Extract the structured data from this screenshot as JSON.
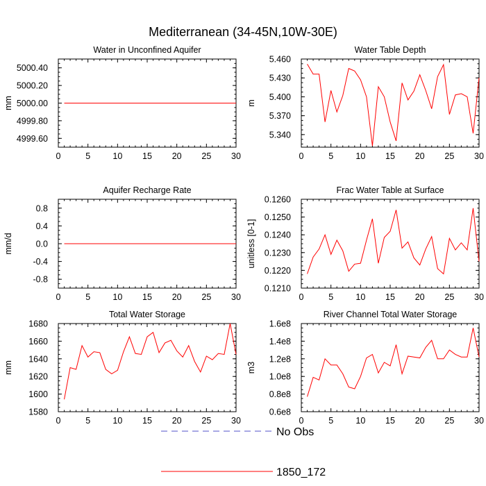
{
  "title": "Mediterranean (34-45N,10W-30E)",
  "series_color": "#ff0000",
  "obs_color": "#5050c8",
  "legend": {
    "obs_label": "No Obs",
    "model_label": "1850_172"
  },
  "chart_data": [
    {
      "type": "line",
      "title": "Water in Unconfined Aquifer",
      "ylabel": "mm",
      "xlim": [
        0,
        30
      ],
      "xticks": [
        0,
        5,
        10,
        15,
        20,
        25,
        30
      ],
      "ylim": [
        4999.5,
        5000.5
      ],
      "yticks": [
        4999.6,
        4999.8,
        5000.0,
        5000.2,
        5000.4
      ],
      "ytick_labels": [
        "4999.60",
        "4999.80",
        "5000.00",
        "5000.20",
        "5000.40"
      ],
      "x": [
        1,
        2,
        3,
        4,
        5,
        6,
        7,
        8,
        9,
        10,
        11,
        12,
        13,
        14,
        15,
        16,
        17,
        18,
        19,
        20,
        21,
        22,
        23,
        24,
        25,
        26,
        27,
        28,
        29,
        30
      ],
      "values": [
        5000,
        5000,
        5000,
        5000,
        5000,
        5000,
        5000,
        5000,
        5000,
        5000,
        5000,
        5000,
        5000,
        5000,
        5000,
        5000,
        5000,
        5000,
        5000,
        5000,
        5000,
        5000,
        5000,
        5000,
        5000,
        5000,
        5000,
        5000,
        5000,
        5000
      ]
    },
    {
      "type": "line",
      "title": "Water Table Depth",
      "ylabel": "m",
      "xlim": [
        0,
        30
      ],
      "xticks": [
        0,
        5,
        10,
        15,
        20,
        25,
        30
      ],
      "ylim": [
        5.32,
        5.46
      ],
      "yticks": [
        5.34,
        5.37,
        5.4,
        5.43,
        5.46
      ],
      "ytick_labels": [
        "5.340",
        "5.370",
        "5.400",
        "5.430",
        "5.460"
      ],
      "x": [
        1,
        2,
        3,
        4,
        5,
        6,
        7,
        8,
        9,
        10,
        11,
        12,
        13,
        14,
        15,
        16,
        17,
        18,
        19,
        20,
        21,
        22,
        23,
        24,
        25,
        26,
        27,
        28,
        29,
        30
      ],
      "values": [
        5.452,
        5.436,
        5.436,
        5.36,
        5.41,
        5.376,
        5.402,
        5.445,
        5.441,
        5.427,
        5.4,
        5.322,
        5.416,
        5.4,
        5.36,
        5.33,
        5.422,
        5.395,
        5.409,
        5.435,
        5.41,
        5.381,
        5.432,
        5.451,
        5.372,
        5.403,
        5.405,
        5.4,
        5.342,
        5.43
      ]
    },
    {
      "type": "line",
      "title": "Aquifer Recharge Rate",
      "ylabel": "mm/d",
      "xlim": [
        0,
        30
      ],
      "xticks": [
        0,
        5,
        10,
        15,
        20,
        25,
        30
      ],
      "ylim": [
        -1.0,
        1.0
      ],
      "yticks": [
        -0.8,
        -0.4,
        0.0,
        0.4,
        0.8
      ],
      "ytick_labels": [
        "-0.8",
        "-0.4",
        "0.0",
        "0.4",
        "0.8"
      ],
      "x": [
        1,
        2,
        3,
        4,
        5,
        6,
        7,
        8,
        9,
        10,
        11,
        12,
        13,
        14,
        15,
        16,
        17,
        18,
        19,
        20,
        21,
        22,
        23,
        24,
        25,
        26,
        27,
        28,
        29,
        30
      ],
      "values": [
        0,
        0,
        0,
        0,
        0,
        0,
        0,
        0,
        0,
        0,
        0,
        0,
        0,
        0,
        0,
        0,
        0,
        0,
        0,
        0,
        0,
        0,
        0,
        0,
        0,
        0,
        0,
        0,
        0,
        0
      ]
    },
    {
      "type": "line",
      "title": "Frac Water Table at Surface",
      "ylabel": "unitless [0-1]",
      "xlim": [
        0,
        30
      ],
      "xticks": [
        0,
        5,
        10,
        15,
        20,
        25,
        30
      ],
      "ylim": [
        0.121,
        0.126
      ],
      "yticks": [
        0.121,
        0.122,
        0.123,
        0.124,
        0.125,
        0.126
      ],
      "ytick_labels": [
        "0.1210",
        "0.1220",
        "0.1230",
        "0.1240",
        "0.1250",
        "0.1260"
      ],
      "x": [
        1,
        2,
        3,
        4,
        5,
        6,
        7,
        8,
        9,
        10,
        11,
        12,
        13,
        14,
        15,
        16,
        17,
        18,
        19,
        20,
        21,
        22,
        23,
        24,
        25,
        26,
        27,
        28,
        29,
        30
      ],
      "values": [
        0.1218,
        0.12275,
        0.1232,
        0.124,
        0.1229,
        0.1237,
        0.1231,
        0.12195,
        0.12235,
        0.1224,
        0.1237,
        0.1249,
        0.1224,
        0.12385,
        0.1242,
        0.1254,
        0.12325,
        0.1236,
        0.1227,
        0.1223,
        0.1232,
        0.1239,
        0.1221,
        0.1218,
        0.1238,
        0.12315,
        0.12355,
        0.12315,
        0.1255,
        0.1225
      ]
    },
    {
      "type": "line",
      "title": "Total Water Storage",
      "ylabel": "mm",
      "xlim": [
        0,
        30
      ],
      "xticks": [
        0,
        5,
        10,
        15,
        20,
        25,
        30
      ],
      "ylim": [
        1580,
        1680
      ],
      "yticks": [
        1580,
        1600,
        1620,
        1640,
        1660,
        1680
      ],
      "ytick_labels": [
        "1580",
        "1600",
        "1620",
        "1640",
        "1660",
        "1680"
      ],
      "x": [
        1,
        2,
        3,
        4,
        5,
        6,
        7,
        8,
        9,
        10,
        11,
        12,
        13,
        14,
        15,
        16,
        17,
        18,
        19,
        20,
        21,
        22,
        23,
        24,
        25,
        26,
        27,
        28,
        29,
        30
      ],
      "values": [
        1594,
        1630,
        1628,
        1655,
        1642,
        1648,
        1647,
        1628,
        1623,
        1627,
        1648,
        1665,
        1646,
        1645,
        1665,
        1670,
        1647,
        1658,
        1661,
        1649,
        1642,
        1655,
        1637,
        1625,
        1643,
        1639,
        1646,
        1645,
        1680,
        1645
      ]
    },
    {
      "type": "line",
      "title": "River Channel Total Water Storage",
      "ylabel": "m3",
      "xlim": [
        0,
        30
      ],
      "xticks": [
        0,
        5,
        10,
        15,
        20,
        25,
        30
      ],
      "ylim": [
        60000000,
        160000000
      ],
      "yticks": [
        60000000,
        80000000,
        100000000,
        120000000,
        140000000,
        160000000
      ],
      "ytick_labels": [
        "0.6e8",
        "0.8e8",
        "1.0e8",
        "1.2e8",
        "1.4e8",
        "1.6e8"
      ],
      "x": [
        1,
        2,
        3,
        4,
        5,
        6,
        7,
        8,
        9,
        10,
        11,
        12,
        13,
        14,
        15,
        16,
        17,
        18,
        19,
        20,
        21,
        22,
        23,
        24,
        25,
        26,
        27,
        28,
        29,
        30
      ],
      "values": [
        77000000,
        99000000,
        96000000,
        120000000,
        113000000,
        113000000,
        103000000,
        88000000,
        86000000,
        100000000,
        121000000,
        125000000,
        104000000,
        116000000,
        112000000,
        136000000,
        103000000,
        123000000,
        122000000,
        121000000,
        133000000,
        141000000,
        120000000,
        120000000,
        130000000,
        125000000,
        122000000,
        122000000,
        155000000,
        122000000
      ]
    }
  ]
}
